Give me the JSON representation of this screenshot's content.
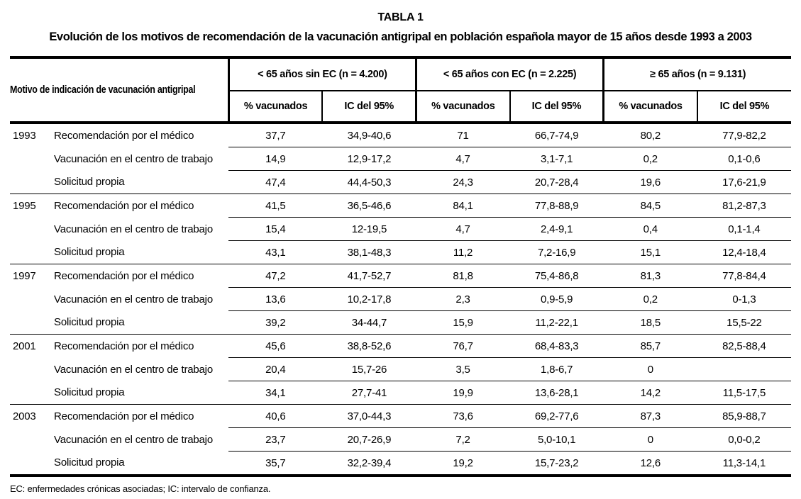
{
  "page": {
    "title": "TABLA 1",
    "subtitle": "Evolución de los motivos de recomendación de la vacunación antigripal en población española mayor de 15 años desde 1993 a 2003",
    "footnote": "EC: enfermedades crónicas asociadas; IC: intervalo de confianza."
  },
  "table": {
    "row_header": "Motivo de indicación de vacunación antigripal",
    "groups": [
      {
        "label": "< 65 años sin EC (n = 4.200)"
      },
      {
        "label": "< 65 años con EC (n = 2.225)"
      },
      {
        "label": "≥ 65 años (n = 9.131)"
      }
    ],
    "subheaders": [
      "% vacunados",
      "IC del 95%"
    ],
    "years": [
      {
        "year": "1993",
        "rows": [
          {
            "motive": "Recomendación por el médico",
            "values": [
              "37,7",
              "34,9-40,6",
              "71",
              "66,7-74,9",
              "80,2",
              "77,9-82,2"
            ]
          },
          {
            "motive": "Vacunación en el centro de trabajo",
            "values": [
              "14,9",
              "12,9-17,2",
              "4,7",
              "3,1-7,1",
              "0,2",
              "0,1-0,6"
            ]
          },
          {
            "motive": "Solicitud propia",
            "values": [
              "47,4",
              "44,4-50,3",
              "24,3",
              "20,7-28,4",
              "19,6",
              "17,6-21,9"
            ]
          }
        ]
      },
      {
        "year": "1995",
        "rows": [
          {
            "motive": "Recomendación por el médico",
            "values": [
              "41,5",
              "36,5-46,6",
              "84,1",
              "77,8-88,9",
              "84,5",
              "81,2-87,3"
            ]
          },
          {
            "motive": "Vacunación en el centro de trabajo",
            "values": [
              "15,4",
              "12-19,5",
              "4,7",
              "2,4-9,1",
              "0,4",
              "0,1-1,4"
            ]
          },
          {
            "motive": "Solicitud propia",
            "values": [
              "43,1",
              "38,1-48,3",
              "11,2",
              "7,2-16,9",
              "15,1",
              "12,4-18,4"
            ]
          }
        ]
      },
      {
        "year": "1997",
        "rows": [
          {
            "motive": "Recomendación por el médico",
            "values": [
              "47,2",
              "41,7-52,7",
              "81,8",
              "75,4-86,8",
              "81,3",
              "77,8-84,4"
            ]
          },
          {
            "motive": "Vacunación en el centro de trabajo",
            "values": [
              "13,6",
              "10,2-17,8",
              "2,3",
              "0,9-5,9",
              "0,2",
              "0-1,3"
            ]
          },
          {
            "motive": "Solicitud propia",
            "values": [
              "39,2",
              "34-44,7",
              "15,9",
              "11,2-22,1",
              "18,5",
              "15,5-22"
            ]
          }
        ]
      },
      {
        "year": "2001",
        "rows": [
          {
            "motive": "Recomendación por el médico",
            "values": [
              "45,6",
              "38,8-52,6",
              "76,7",
              "68,4-83,3",
              "85,7",
              "82,5-88,4"
            ]
          },
          {
            "motive": "Vacunación en el centro de trabajo",
            "values": [
              "20,4",
              "15,7-26",
              "3,5",
              "1,8-6,7",
              "0",
              ""
            ]
          },
          {
            "motive": "Solicitud propia",
            "values": [
              "34,1",
              "27,7-41",
              "19,9",
              "13,6-28,1",
              "14,2",
              "11,5-17,5"
            ]
          }
        ]
      },
      {
        "year": "2003",
        "rows": [
          {
            "motive": "Recomendación por el médico",
            "values": [
              "40,6",
              "37,0-44,3",
              "73,6",
              "69,2-77,6",
              "87,3",
              "85,9-88,7"
            ]
          },
          {
            "motive": "Vacunación en el centro de trabajo",
            "values": [
              "23,7",
              "20,7-26,9",
              "7,2",
              "5,0-10,1",
              "0",
              "0,0-0,2"
            ]
          },
          {
            "motive": "Solicitud propia",
            "values": [
              "35,7",
              "32,2-39,4",
              "19,2",
              "15,7-23,2",
              "12,6",
              "11,3-14,1"
            ]
          }
        ]
      }
    ]
  }
}
